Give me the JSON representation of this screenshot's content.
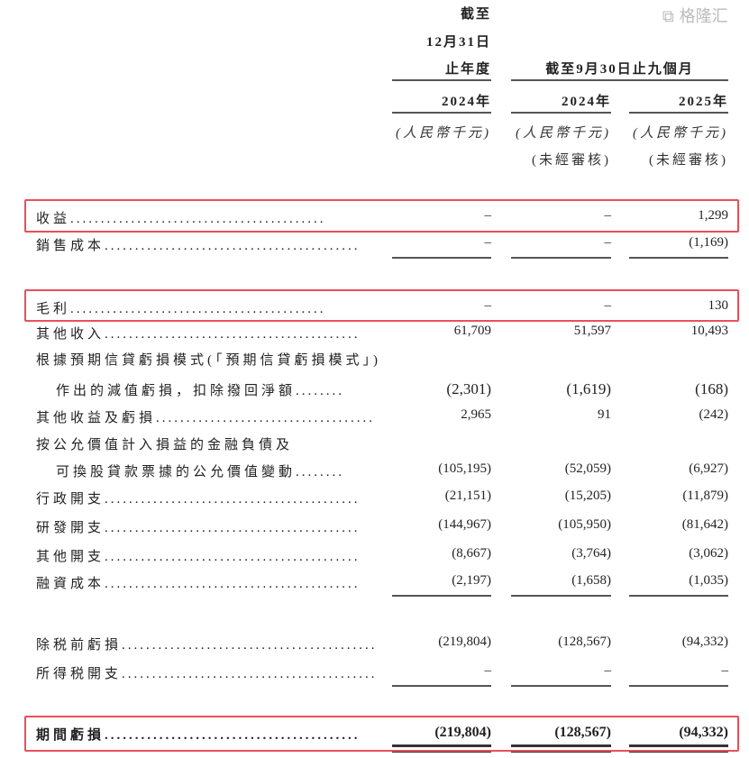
{
  "header": {
    "col1_line1": "截至",
    "col1_line2": "12月31日",
    "col1_line3": "止年度",
    "group_label": "截至9月30日止九個月",
    "years": [
      "2024年",
      "2024年",
      "2025年"
    ],
    "units": [
      "(人民幣千元)",
      "(人民幣千元)",
      "(人民幣千元)"
    ],
    "audit_notes": [
      "(未經審核)",
      "(未經審核)"
    ]
  },
  "rows": [
    {
      "label": "收益",
      "values": [
        "–",
        "–",
        "1,299"
      ],
      "highlighted": true
    },
    {
      "label": "銷售成本",
      "values": [
        "–",
        "–",
        "(1,169)"
      ]
    },
    {
      "label": "毛利",
      "values": [
        "–",
        "–",
        "130"
      ],
      "highlighted": true
    },
    {
      "label": "其他收入",
      "values": [
        "61,709",
        "51,597",
        "10,493"
      ]
    },
    {
      "label": "根據預期信貸虧損模式(「預期信貸虧損模式」)",
      "values": []
    },
    {
      "label": "作出的減值虧損，扣除撥回淨額",
      "values": [
        "(2,301)",
        "(1,619)",
        "(168)"
      ]
    },
    {
      "label": "其他收益及虧損",
      "values": [
        "2,965",
        "91",
        "(242)"
      ]
    },
    {
      "label": "按公允價值計入損益的金融負債及",
      "values": []
    },
    {
      "label": "可換股貸款票據的公允價值變動",
      "values": [
        "(105,195)",
        "(52,059)",
        "(6,927)"
      ]
    },
    {
      "label": "行政開支",
      "values": [
        "(21,151)",
        "(15,205)",
        "(11,879)"
      ]
    },
    {
      "label": "研發開支",
      "values": [
        "(144,967)",
        "(105,950)",
        "(81,642)"
      ]
    },
    {
      "label": "其他開支",
      "values": [
        "(8,667)",
        "(3,764)",
        "(3,062)"
      ]
    },
    {
      "label": "融資成本",
      "values": [
        "(2,197)",
        "(1,658)",
        "(1,035)"
      ]
    },
    {
      "label": "除税前虧損",
      "values": [
        "(219,804)",
        "(128,567)",
        "(94,332)"
      ]
    },
    {
      "label": "所得税開支",
      "values": [
        "–",
        "–",
        "–"
      ]
    },
    {
      "label": "期間虧損",
      "values": [
        "(219,804)",
        "(128,567)",
        "(94,332)"
      ],
      "highlighted": true
    }
  ],
  "dot_leader": "..........................................",
  "dot_leader_short": "........",
  "highlight_color": "#e8505b",
  "watermark": "格隆汇"
}
